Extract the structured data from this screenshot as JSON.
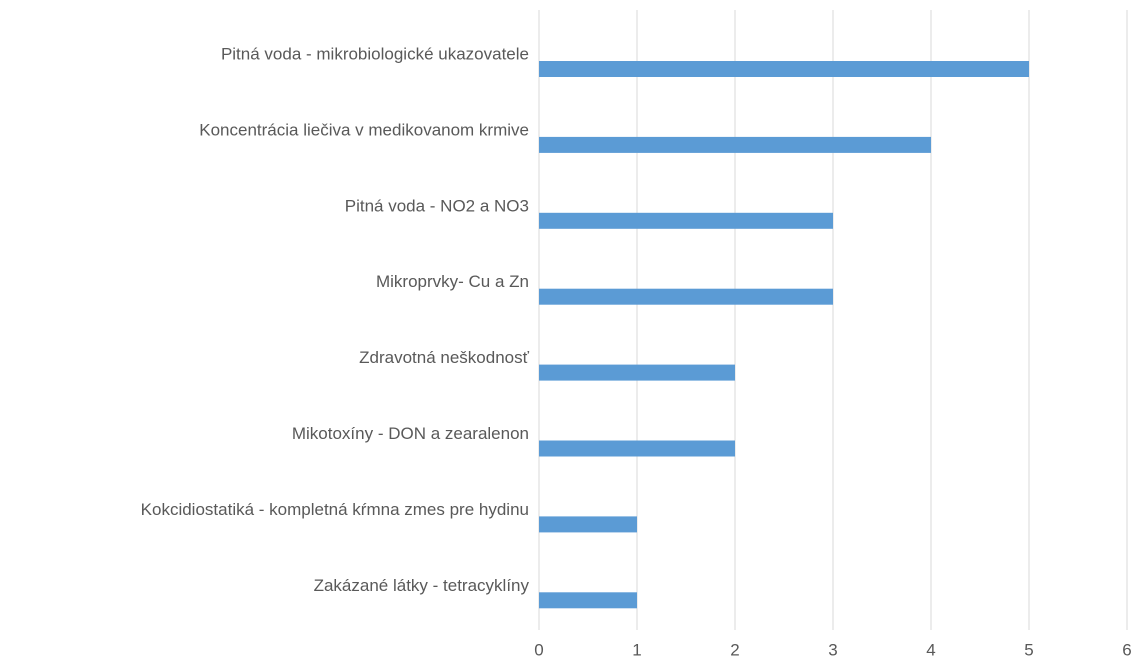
{
  "chart_data": {
    "type": "barh",
    "categories": [
      "Pitná voda - mikrobiologické ukazovatele",
      "Koncentrácia liečiva v medikovanom krmive",
      "Pitná voda - NO2 a NO3",
      "Mikroprvky- Cu a Zn",
      "Zdravotná neškodnosť",
      "Mikotoxíny - DON a zearalenon",
      "Kokcidiostatiká - kompletná kŕmna zmes pre hydinu",
      "Zakázané látky - tetracyklíny"
    ],
    "values": [
      5,
      4,
      3,
      3,
      2,
      2,
      1,
      1
    ],
    "color": "#5b9bd5",
    "xlim": [
      0,
      6
    ],
    "xticks": [
      0,
      1,
      2,
      3,
      4,
      5,
      6
    ],
    "grid": true
  }
}
